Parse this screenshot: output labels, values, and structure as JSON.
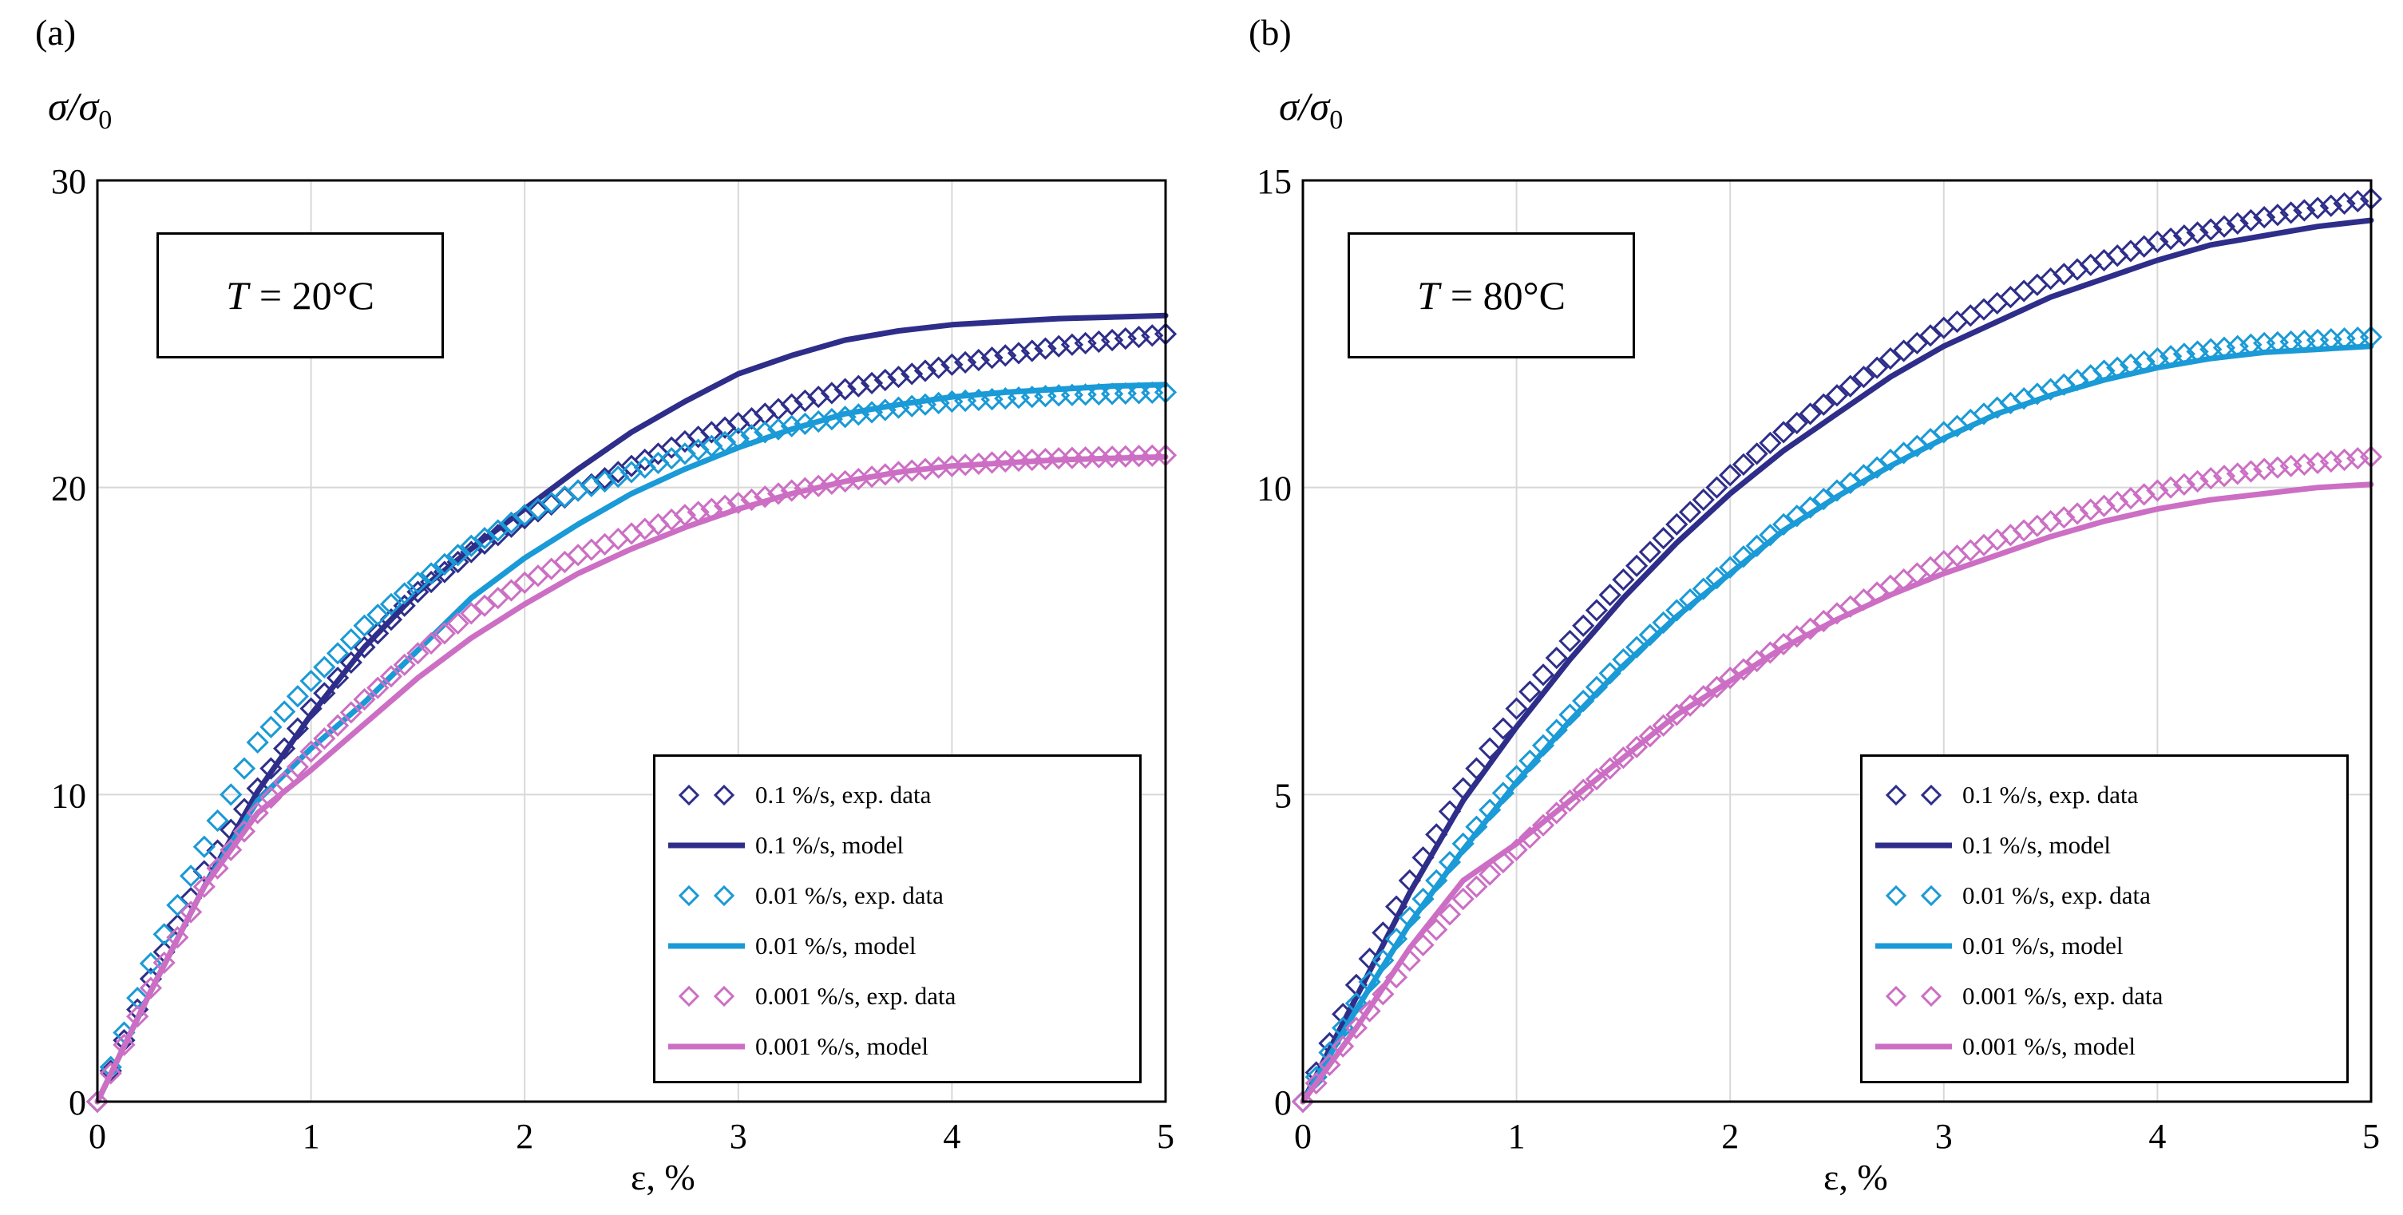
{
  "chart_data": [
    {
      "type": "line",
      "panel_label": "(a)",
      "annotation_var": "T",
      "annotation_value": "= 20°C",
      "ylabel": "σ/σ0",
      "xlabel": "ε, %",
      "xlim": [
        0,
        5
      ],
      "ylim": [
        0,
        30
      ],
      "xticks": [
        "0",
        "1",
        "2",
        "3",
        "4",
        "5"
      ],
      "yticks": [
        "0",
        "10",
        "20",
        "30"
      ],
      "grid": true,
      "legend_position": "bottom-right",
      "x": [
        0,
        0.25,
        0.5,
        0.75,
        1,
        1.25,
        1.5,
        1.75,
        2,
        2.25,
        2.5,
        2.75,
        3,
        3.25,
        3.5,
        3.75,
        4,
        4.25,
        4.5,
        4.75,
        5
      ],
      "series": [
        {
          "name": "0.1 %/s, exp. data",
          "marker": "diamond",
          "color": "#2e2e8a",
          "values": [
            0,
            4.0,
            7.5,
            10.2,
            12.8,
            14.8,
            16.6,
            17.9,
            19.0,
            19.9,
            20.7,
            21.5,
            22.1,
            22.7,
            23.2,
            23.6,
            24.0,
            24.3,
            24.6,
            24.8,
            25.0
          ]
        },
        {
          "name": "0.1 %/s, model",
          "marker": "line",
          "color": "#2e2e8a",
          "values": [
            0,
            3.6,
            7.0,
            10.1,
            12.6,
            14.8,
            16.6,
            18.0,
            19.3,
            20.6,
            21.8,
            22.8,
            23.7,
            24.3,
            24.8,
            25.1,
            25.3,
            25.4,
            25.5,
            25.55,
            25.6
          ]
        },
        {
          "name": "0.01 %/s, exp. data",
          "marker": "diamond",
          "color": "#1a9ad6",
          "values": [
            0,
            4.5,
            8.3,
            11.7,
            13.7,
            15.5,
            16.9,
            18.1,
            19.1,
            19.9,
            20.5,
            21.1,
            21.6,
            22.0,
            22.3,
            22.6,
            22.8,
            22.9,
            23.0,
            23.05,
            23.1
          ]
        },
        {
          "name": "0.01 %/s, model",
          "marker": "line",
          "color": "#1a9ad6",
          "values": [
            0,
            3.6,
            7.0,
            9.8,
            11.5,
            13.0,
            14.7,
            16.4,
            17.7,
            18.8,
            19.8,
            20.6,
            21.3,
            21.9,
            22.4,
            22.7,
            22.95,
            23.1,
            23.2,
            23.3,
            23.35
          ]
        },
        {
          "name": "0.001 %/s, exp. data",
          "marker": "diamond",
          "color": "#cc6fc4",
          "values": [
            0,
            3.7,
            7.0,
            9.4,
            11.4,
            13.1,
            14.6,
            15.9,
            16.9,
            17.8,
            18.5,
            19.1,
            19.5,
            19.9,
            20.2,
            20.5,
            20.7,
            20.85,
            20.95,
            21.0,
            21.05
          ]
        },
        {
          "name": "0.001 %/s, model",
          "marker": "line",
          "color": "#cc6fc4",
          "values": [
            0,
            3.6,
            7.0,
            9.4,
            10.8,
            12.3,
            13.8,
            15.1,
            16.2,
            17.2,
            18.0,
            18.7,
            19.3,
            19.8,
            20.2,
            20.5,
            20.7,
            20.8,
            20.9,
            20.95,
            21.0
          ]
        }
      ]
    },
    {
      "type": "line",
      "panel_label": "(b)",
      "annotation_var": "T",
      "annotation_value": "= 80°C",
      "ylabel": "σ/σ0",
      "xlabel": "ε, %",
      "xlim": [
        0,
        5
      ],
      "ylim": [
        0,
        15
      ],
      "xticks": [
        "0",
        "1",
        "2",
        "3",
        "4",
        "5"
      ],
      "yticks": [
        "0",
        "5",
        "10",
        "15"
      ],
      "grid": true,
      "legend_position": "bottom-right",
      "x": [
        0,
        0.25,
        0.5,
        0.75,
        1,
        1.25,
        1.5,
        1.75,
        2,
        2.25,
        2.5,
        2.75,
        3,
        3.25,
        3.5,
        3.75,
        4,
        4.25,
        4.5,
        4.75,
        5
      ],
      "series": [
        {
          "name": "0.1 %/s, exp. data",
          "marker": "diamond",
          "color": "#2e2e8a",
          "values": [
            0,
            1.9,
            3.6,
            5.1,
            6.4,
            7.5,
            8.5,
            9.4,
            10.2,
            10.9,
            11.5,
            12.1,
            12.6,
            13.0,
            13.4,
            13.7,
            14.0,
            14.2,
            14.4,
            14.55,
            14.7
          ]
        },
        {
          "name": "0.1 %/s, model",
          "marker": "line",
          "color": "#2e2e8a",
          "values": [
            0,
            1.7,
            3.4,
            4.9,
            6.1,
            7.2,
            8.2,
            9.1,
            9.9,
            10.6,
            11.2,
            11.8,
            12.3,
            12.7,
            13.1,
            13.4,
            13.7,
            13.95,
            14.1,
            14.25,
            14.35
          ]
        },
        {
          "name": "0.01 %/s, exp. data",
          "marker": "diamond",
          "color": "#1a9ad6",
          "values": [
            0,
            1.6,
            3.0,
            4.2,
            5.3,
            6.3,
            7.2,
            8.0,
            8.7,
            9.4,
            9.95,
            10.45,
            10.9,
            11.3,
            11.6,
            11.9,
            12.1,
            12.25,
            12.35,
            12.4,
            12.45
          ]
        },
        {
          "name": "0.01 %/s, model",
          "marker": "line",
          "color": "#1a9ad6",
          "values": [
            0,
            1.5,
            2.9,
            4.1,
            5.2,
            6.2,
            7.1,
            7.9,
            8.6,
            9.3,
            9.85,
            10.35,
            10.8,
            11.2,
            11.5,
            11.75,
            11.95,
            12.1,
            12.2,
            12.25,
            12.3
          ]
        },
        {
          "name": "0.001 %/s, exp. data",
          "marker": "diamond",
          "color": "#cc6fc4",
          "values": [
            0,
            1.2,
            2.3,
            3.3,
            4.1,
            4.9,
            5.6,
            6.3,
            6.9,
            7.45,
            7.95,
            8.4,
            8.8,
            9.15,
            9.45,
            9.7,
            9.95,
            10.15,
            10.3,
            10.4,
            10.5
          ]
        },
        {
          "name": "0.001 %/s, model",
          "marker": "line",
          "color": "#cc6fc4",
          "values": [
            0,
            1.2,
            2.5,
            3.6,
            4.2,
            4.9,
            5.6,
            6.3,
            6.85,
            7.4,
            7.85,
            8.25,
            8.6,
            8.9,
            9.2,
            9.45,
            9.65,
            9.8,
            9.9,
            10.0,
            10.05
          ]
        }
      ]
    }
  ]
}
